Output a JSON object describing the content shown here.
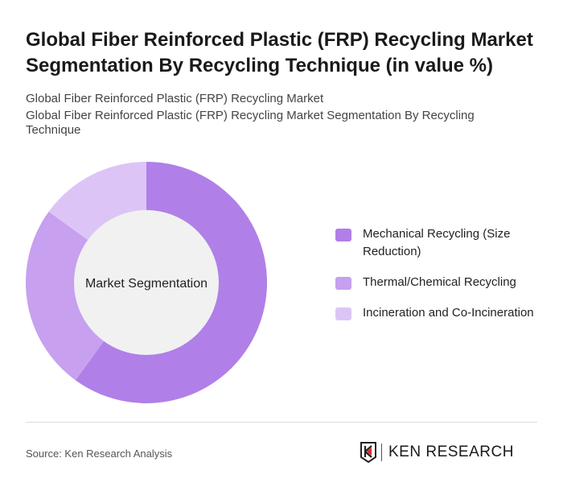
{
  "title": "Global Fiber Reinforced Plastic (FRP) Recycling Market Segmentation By Recycling Technique (in value %)",
  "subtitle1": "Global Fiber Reinforced Plastic (FRP) Recycling Market",
  "subtitle2": "Global Fiber Reinforced Plastic (FRP) Recycling Market Segmentation By Recycling Technique",
  "source": "Source: Ken Research Analysis",
  "logo_text": "KEN RESEARCH",
  "chart_data": {
    "type": "pie",
    "variant": "donut",
    "center_label": "Market Segmentation",
    "legend_position": "right",
    "categories": [
      "Mechanical Recycling (Size Reduction)",
      "Thermal/Chemical Recycling",
      "Incineration and Co-Incineration"
    ],
    "values": [
      60,
      25,
      15
    ],
    "colors": [
      "#b07fe8",
      "#c7a0ef",
      "#dcc5f6"
    ]
  }
}
